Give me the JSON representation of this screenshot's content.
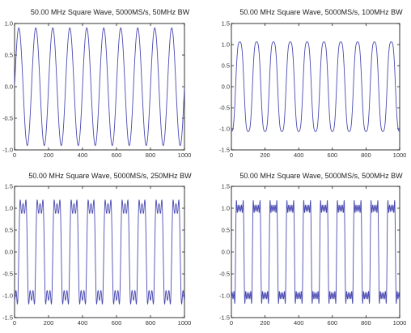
{
  "chart_data": [
    {
      "type": "line",
      "title": "50.00 MHz Square Wave, 5000MS/s, 50MHz BW",
      "xlim": [
        0,
        1000
      ],
      "ylim": [
        -1.0,
        1.0
      ],
      "x_ticks": [
        "0",
        "200",
        "400",
        "600",
        "800",
        "1000"
      ],
      "y_ticks": [
        "1.0",
        "0.5",
        "0.0",
        "-0.5",
        "-1.0"
      ],
      "series": [
        {
          "waveform": "square wave filtered to 50MHz bandwidth (near sinusoid)",
          "color": "#4a4ab3",
          "cycles_per_1000_samples": 10,
          "x": [
            0,
            25,
            50,
            75,
            100,
            125,
            150,
            175,
            200,
            225,
            250,
            275,
            300,
            325,
            350,
            375,
            400,
            425,
            450,
            475,
            500,
            525,
            550,
            575,
            600,
            625,
            650,
            675,
            700,
            725,
            750,
            775,
            800,
            825,
            850,
            875,
            900,
            925,
            950,
            975,
            1000
          ],
          "y": [
            -0.55,
            0.0,
            0.93,
            0.0,
            -0.93,
            0.0,
            0.93,
            0.0,
            -0.93,
            0.0,
            0.93,
            0.0,
            -0.93,
            0.0,
            0.93,
            0.0,
            -0.93,
            0.0,
            0.93,
            0.0,
            -0.93,
            0.0,
            0.93,
            0.0,
            -0.93,
            0.0,
            0.93,
            0.0,
            -0.93,
            0.0,
            0.93,
            0.0,
            -0.93,
            0.0,
            0.93,
            0.0,
            -0.93,
            0.0,
            0.93,
            0.0,
            -0.55
          ]
        }
      ]
    },
    {
      "type": "line",
      "title": "50.00 MHz Square Wave, 5000MS/s, 100MHz BW",
      "xlim": [
        0,
        1000
      ],
      "ylim": [
        -1.5,
        1.5
      ],
      "x_ticks": [
        "0",
        "200",
        "400",
        "600",
        "800",
        "1000"
      ],
      "y_ticks": [
        "1.5",
        "1.0",
        "0.5",
        "0.0",
        "-0.5",
        "-1.0",
        "-1.5"
      ],
      "series": [
        {
          "waveform": "square wave filtered to 100MHz bandwidth (rounded, overshoot)",
          "color": "#4a4ab3",
          "cycles_per_1000_samples": 10,
          "peak_high": 1.17,
          "peak_low": -1.17
        }
      ]
    },
    {
      "type": "line",
      "title": "50.00 MHz Square Wave, 5000MS/s, 250MHz BW",
      "xlim": [
        0,
        1000
      ],
      "ylim": [
        -1.5,
        1.5
      ],
      "x_ticks": [
        "0",
        "200",
        "400",
        "600",
        "800",
        "1000"
      ],
      "y_ticks": [
        "1.5",
        "1.0",
        "0.5",
        "0.0",
        "-0.5",
        "-1.0",
        "-1.5"
      ],
      "series": [
        {
          "waveform": "square wave filtered to 250MHz bandwidth (ringing at edges)",
          "color": "#4a4ab3",
          "cycles_per_1000_samples": 10,
          "level_high": 1.0,
          "level_low": -1.0,
          "overshoot": 0.15
        }
      ]
    },
    {
      "type": "line",
      "title": "50.00 MHz Square Wave, 5000MS/s, 500MHz BW",
      "xlim": [
        0,
        1000
      ],
      "ylim": [
        -1.5,
        1.5
      ],
      "x_ticks": [
        "0",
        "200",
        "400",
        "600",
        "800",
        "1000"
      ],
      "y_ticks": [
        "1.5",
        "1.0",
        "0.5",
        "0.0",
        "-0.5",
        "-1.0",
        "-1.5"
      ],
      "series": [
        {
          "waveform": "square wave filtered to 500MHz bandwidth (sharp edges, Gibbs ringing)",
          "color": "#4a4ab3",
          "cycles_per_1000_samples": 10,
          "level_high": 1.0,
          "level_low": -1.0,
          "overshoot": 0.17
        }
      ]
    }
  ]
}
